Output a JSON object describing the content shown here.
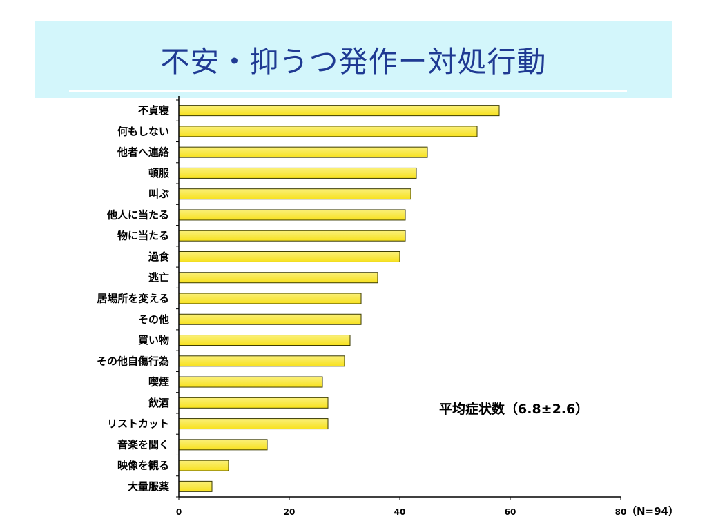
{
  "slide": {
    "title": "不安・抑うつ発作ー対処行動"
  },
  "chart_data": {
    "type": "bar",
    "orientation": "horizontal",
    "categories": [
      "不貞寝",
      "何もしない",
      "他者へ連絡",
      "頓服",
      "叫ぶ",
      "他人に当たる",
      "物に当たる",
      "過食",
      "逃亡",
      "居場所を変える",
      "その他",
      "買い物",
      "その他自傷行為",
      "喫煙",
      "飲酒",
      "リストカット",
      "音楽を聞く",
      "映像を観る",
      "大量服薬"
    ],
    "values": [
      58,
      54,
      45,
      43,
      42,
      41,
      41,
      40,
      36,
      33,
      33,
      31,
      30,
      26,
      27,
      27,
      16,
      9,
      6
    ],
    "xlim": [
      0,
      80
    ],
    "xticks": [
      0,
      20,
      40,
      60,
      80
    ],
    "grid": false,
    "bar_color": "#f7e11e",
    "bar_color_top": "#faf07a",
    "bar_edge_color": "#3a3a00",
    "annotation": "平均症状数（6.8±2.6）",
    "sample_label": "（N=94）"
  }
}
